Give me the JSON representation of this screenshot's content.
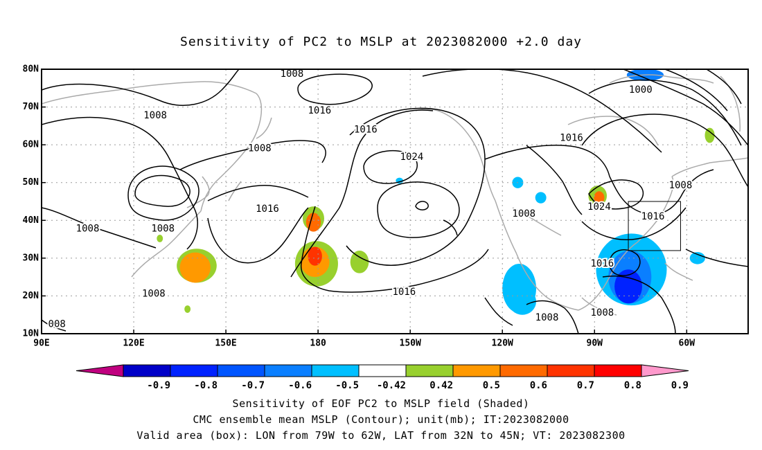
{
  "title": "Sensitivity of PC2 to MSLP at 2023082000 +2.0 day",
  "axes": {
    "lat_labels": [
      "80N",
      "70N",
      "60N",
      "50N",
      "40N",
      "30N",
      "20N",
      "10N"
    ],
    "lon_labels": [
      "90E",
      "120E",
      "150E",
      "180",
      "150W",
      "120W",
      "90W",
      "60W"
    ]
  },
  "contour_labels": [
    {
      "text": "1008",
      "lon": 171.5,
      "lat": 78.7
    },
    {
      "text": "1016",
      "lon": -179.5,
      "lat": 69.0
    },
    {
      "text": "1008",
      "lon": 127.0,
      "lat": 67.7
    },
    {
      "text": "1016",
      "lon": -164.5,
      "lat": 64.0
    },
    {
      "text": "1016",
      "lon": -97.5,
      "lat": 61.8
    },
    {
      "text": "1008",
      "lon": 161.0,
      "lat": 59.0
    },
    {
      "text": "1024",
      "lon": -149.5,
      "lat": 56.7
    },
    {
      "text": "1000",
      "lon": -75.0,
      "lat": 74.5
    },
    {
      "text": "1008",
      "lon": -62.0,
      "lat": 49.2
    },
    {
      "text": "1016",
      "lon": 163.5,
      "lat": 43.0
    },
    {
      "text": "1008",
      "lon": 105.0,
      "lat": 37.8
    },
    {
      "text": "1008",
      "lon": 129.5,
      "lat": 37.8
    },
    {
      "text": "1008",
      "lon": -113.0,
      "lat": 41.7
    },
    {
      "text": "1024",
      "lon": -88.5,
      "lat": 43.5
    },
    {
      "text": "1016",
      "lon": -71.0,
      "lat": 41.0
    },
    {
      "text": "1016",
      "lon": -87.5,
      "lat": 28.5
    },
    {
      "text": "1016",
      "lon": -152.0,
      "lat": 21.0
    },
    {
      "text": "1008",
      "lon": 126.5,
      "lat": 20.5
    },
    {
      "text": "1008",
      "lon": -105.5,
      "lat": 14.2
    },
    {
      "text": "1008",
      "lon": -87.5,
      "lat": 15.5
    },
    {
      "text": "008",
      "lon": 95.0,
      "lat": 12.5
    }
  ],
  "valid_box": {
    "lon_w": -79,
    "lon_e": -62,
    "lat_s": 32,
    "lat_n": 45
  },
  "colorbar": {
    "labels": [
      "-0.9",
      "-0.8",
      "-0.7",
      "-0.6",
      "-0.5",
      "-0.42",
      "0.42",
      "0.5",
      "0.6",
      "0.7",
      "0.8",
      "0.9"
    ],
    "colors": [
      "#c0007f",
      "#0000c8",
      "#0022ff",
      "#0055ff",
      "#0a7fff",
      "#00bfff",
      "#ffffff",
      "#98d02e",
      "#ff9900",
      "#ff6a00",
      "#ff3300",
      "#ff0000",
      "#ff99cc"
    ]
  },
  "captions": {
    "line1": "Sensitivity of EOF PC2 to MSLP field (Shaded)",
    "line2": "CMC ensemble mean MSLP (Contour); unit(mb); IT:2023082000",
    "line3": "Valid area (box): LON from 79W to 62W, LAT from 32N to 45N; VT: 2023082300"
  },
  "shaded_regions": [
    {
      "lon": 140.5,
      "lat": 28.0,
      "rx": 6.5,
      "ry": 4.5,
      "color": "#98d02e"
    },
    {
      "lon": 140.0,
      "lat": 27.5,
      "rx": 5.0,
      "ry": 4.0,
      "color": "#ff9900"
    },
    {
      "lon": 178.5,
      "lat": 40.5,
      "rx": 3.5,
      "ry": 3.2,
      "color": "#98d02e"
    },
    {
      "lon": 178.5,
      "lat": 39.5,
      "rx": 2.4,
      "ry": 2.5,
      "color": "#ff6a00"
    },
    {
      "lon": 179.5,
      "lat": 28.5,
      "rx": 7.0,
      "ry": 6.0,
      "color": "#98d02e"
    },
    {
      "lon": 179.0,
      "lat": 29.0,
      "rx": 4.7,
      "ry": 4.0,
      "color": "#ff9900"
    },
    {
      "lon": 179.0,
      "lat": 30.5,
      "rx": 2.3,
      "ry": 2.5,
      "color": "#ff3300"
    },
    {
      "lon": -166.5,
      "lat": 29.0,
      "rx": 3.0,
      "ry": 3.0,
      "color": "#98d02e"
    },
    {
      "lon": -114.5,
      "lat": 22.0,
      "rx": 5.5,
      "ry": 6.5,
      "color": "#00bfff"
    },
    {
      "lon": -113.5,
      "lat": 18.5,
      "rx": 4.5,
      "ry": 3.5,
      "color": "#00bfff"
    },
    {
      "lon": -89.0,
      "lat": 46.5,
      "rx": 3.0,
      "ry": 2.7,
      "color": "#98d02e"
    },
    {
      "lon": -88.5,
      "lat": 46.0,
      "rx": 1.7,
      "ry": 1.7,
      "color": "#ff6a00"
    },
    {
      "lon": -78.0,
      "lat": 27.0,
      "rx": 11.5,
      "ry": 9.5,
      "color": "#00bfff"
    },
    {
      "lon": -78.5,
      "lat": 25.0,
      "rx": 7.0,
      "ry": 7.0,
      "color": "#0a7fff"
    },
    {
      "lon": -79.0,
      "lat": 22.5,
      "rx": 4.5,
      "ry": 4.5,
      "color": "#0022ff"
    },
    {
      "lon": -73.5,
      "lat": 78.5,
      "rx": 6.0,
      "ry": 1.6,
      "color": "#0a7fff"
    },
    {
      "lon": -115.0,
      "lat": 50.0,
      "rx": 1.8,
      "ry": 1.5,
      "color": "#00bfff"
    },
    {
      "lon": -107.5,
      "lat": 46.0,
      "rx": 1.8,
      "ry": 1.5,
      "color": "#00bfff"
    },
    {
      "lon": -56.5,
      "lat": 30.0,
      "rx": 2.5,
      "ry": 1.6,
      "color": "#00bfff"
    },
    {
      "lon": -153.5,
      "lat": 50.5,
      "rx": 1.2,
      "ry": 0.8,
      "color": "#00bfff"
    },
    {
      "lon": -52.5,
      "lat": 62.5,
      "rx": 1.6,
      "ry": 2.0,
      "color": "#98d02e"
    },
    {
      "lon": 128.5,
      "lat": 35.2,
      "rx": 1.0,
      "ry": 1.0,
      "color": "#98d02e"
    },
    {
      "lon": 137.5,
      "lat": 16.5,
      "rx": 1.0,
      "ry": 1.0,
      "color": "#98d02e"
    }
  ]
}
